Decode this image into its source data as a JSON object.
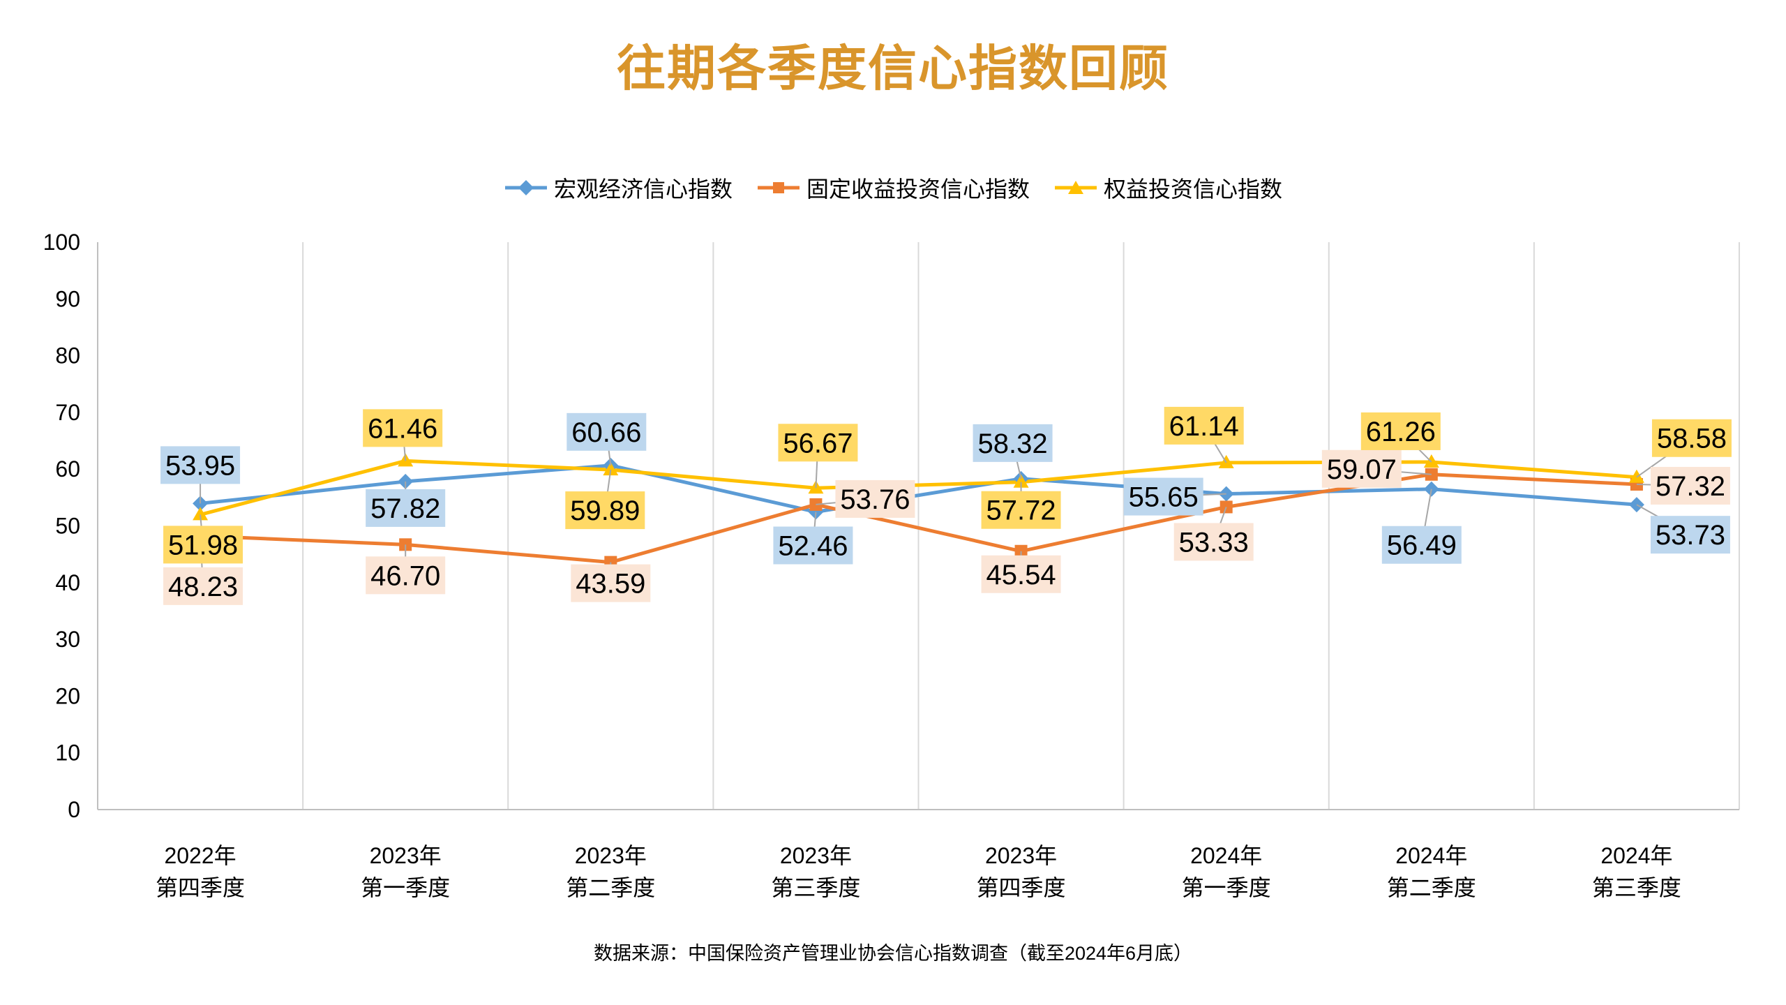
{
  "title": "往期各季度信心指数回顾",
  "source_note": "数据来源：中国保险资产管理业协会信心指数调查（截至2024年6月底）",
  "colors": {
    "title": "#D9952B",
    "gridline": "#D9D9D9",
    "axis": "#BFBFBF",
    "leader_line": "#A6A6A6",
    "label_text": "#000000",
    "background": "#FFFFFF"
  },
  "chart_data": {
    "type": "line",
    "title": "往期各季度信心指数回顾",
    "xlabel": "",
    "ylabel": "",
    "ylim": [
      0,
      100
    ],
    "ytick_step": 10,
    "grid": "vertical-only",
    "legend_position": "top-center",
    "categories": [
      [
        "2022年",
        "第四季度"
      ],
      [
        "2023年",
        "第一季度"
      ],
      [
        "2023年",
        "第二季度"
      ],
      [
        "2023年",
        "第三季度"
      ],
      [
        "2023年",
        "第四季度"
      ],
      [
        "2024年",
        "第一季度"
      ],
      [
        "2024年",
        "第二季度"
      ],
      [
        "2024年",
        "第三季度"
      ]
    ],
    "series": [
      {
        "key": "macro-economy",
        "name": "宏观经济信心指数",
        "color": "#5B9BD5",
        "marker": "diamond",
        "label_fill": "#BDD7EE",
        "values": [
          53.95,
          57.82,
          60.66,
          52.46,
          58.32,
          55.65,
          56.49,
          53.73
        ],
        "label_offsets": [
          [
            0,
            -55
          ],
          [
            0,
            38
          ],
          [
            -6,
            -48
          ],
          [
            -4,
            48
          ],
          [
            -12,
            -51
          ],
          [
            -90,
            4
          ],
          [
            -14,
            80
          ],
          [
            77,
            43
          ]
        ]
      },
      {
        "key": "fixed-income",
        "name": "固定收益投资信心指数",
        "color": "#ED7D31",
        "marker": "square",
        "label_fill": "#FBE5D6",
        "values": [
          48.23,
          46.7,
          43.59,
          53.76,
          45.54,
          53.33,
          59.07,
          57.32
        ],
        "label_offsets": [
          [
            4,
            72
          ],
          [
            0,
            44
          ],
          [
            0,
            30
          ],
          [
            85,
            -8
          ],
          [
            0,
            33
          ],
          [
            -18,
            50
          ],
          [
            -100,
            -8
          ],
          [
            77,
            2
          ]
        ]
      },
      {
        "key": "equity-investment",
        "name": "权益投资信心指数",
        "color": "#FFC000",
        "marker": "triangle",
        "label_fill": "#FFD966",
        "values": [
          51.98,
          61.46,
          59.89,
          56.67,
          57.72,
          61.14,
          61.26,
          58.58
        ],
        "label_offsets": [
          [
            4,
            43
          ],
          [
            -4,
            -47
          ],
          [
            -8,
            58
          ],
          [
            3,
            -65
          ],
          [
            0,
            40
          ],
          [
            -32,
            -53
          ],
          [
            -44,
            -44
          ],
          [
            79,
            -56
          ]
        ]
      }
    ]
  }
}
